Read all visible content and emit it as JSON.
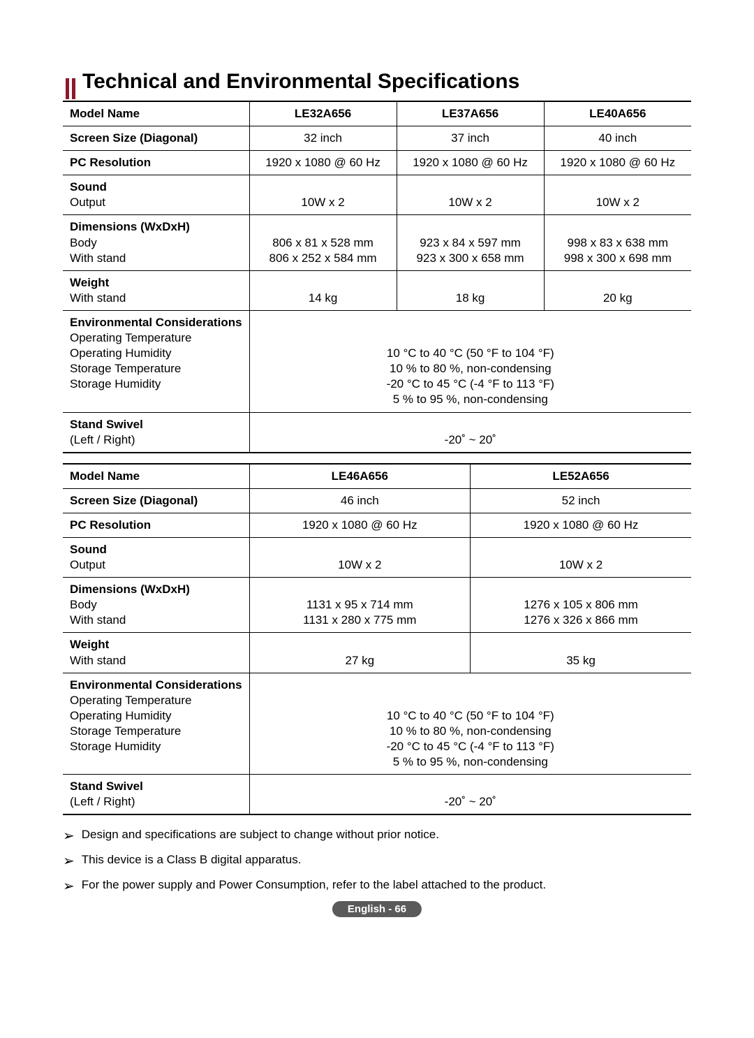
{
  "title": "Technical and Environmental Specifications",
  "accent_color": "#8a1a2b",
  "table1": {
    "header": {
      "label": "Model Name",
      "c1": "LE32A656",
      "c2": "LE37A656",
      "c3": "LE40A656"
    },
    "screen": {
      "label": "Screen Size (Diagonal)",
      "c1": "32 inch",
      "c2": "37 inch",
      "c3": "40 inch"
    },
    "pcres": {
      "label": "PC Resolution",
      "c1": "1920 x 1080 @ 60 Hz",
      "c2": "1920 x 1080 @ 60 Hz",
      "c3": "1920 x 1080 @ 60 Hz"
    },
    "sound": {
      "label": "Sound",
      "sub": "Output",
      "c1": "10W x 2",
      "c2": "10W x 2",
      "c3": "10W x 2"
    },
    "dim": {
      "label": "Dimensions (WxDxH)",
      "sub1": "Body",
      "sub2": "With stand",
      "c1a": "806 x 81 x 528 mm",
      "c1b": "806 x 252 x 584 mm",
      "c2a": "923 x 84 x 597 mm",
      "c2b": "923 x 300 x 658 mm",
      "c3a": "998 x 83 x 638 mm",
      "c3b": "998 x 300 x 698 mm"
    },
    "weight": {
      "label": "Weight",
      "sub": "With stand",
      "c1": "14 kg",
      "c2": "18 kg",
      "c3": "20 kg"
    },
    "env": {
      "label": "Environmental Considerations",
      "sub1": "Operating Temperature",
      "sub2": "Operating Humidity",
      "sub3": "Storage Temperature",
      "sub4": "Storage Humidity",
      "v1": "10 °C to 40 °C (50 °F to 104 °F)",
      "v2": "10 % to 80 %, non-condensing",
      "v3": "-20 °C to 45 °C (-4 °F to 113 °F)",
      "v4": "5 % to 95 %, non-condensing"
    },
    "swivel": {
      "label": "Stand Swivel",
      "sub": "(Left / Right)",
      "val": "-20˚ ~ 20˚"
    }
  },
  "table2": {
    "header": {
      "label": "Model Name",
      "c1": "LE46A656",
      "c2": "LE52A656"
    },
    "screen": {
      "label": "Screen Size (Diagonal)",
      "c1": "46 inch",
      "c2": "52 inch"
    },
    "pcres": {
      "label": "PC Resolution",
      "c1": "1920 x 1080 @ 60 Hz",
      "c2": "1920 x 1080 @ 60 Hz"
    },
    "sound": {
      "label": "Sound",
      "sub": "Output",
      "c1": "10W x 2",
      "c2": "10W x 2"
    },
    "dim": {
      "label": "Dimensions (WxDxH)",
      "sub1": "Body",
      "sub2": "With stand",
      "c1a": "1131 x 95 x 714 mm",
      "c1b": "1131 x 280 x 775 mm",
      "c2a": "1276 x 105 x 806 mm",
      "c2b": "1276 x 326 x 866 mm"
    },
    "weight": {
      "label": "Weight",
      "sub": "With stand",
      "c1": "27 kg",
      "c2": "35 kg"
    },
    "env": {
      "label": "Environmental Considerations",
      "sub1": "Operating Temperature",
      "sub2": "Operating Humidity",
      "sub3": "Storage Temperature",
      "sub4": "Storage Humidity",
      "v1": "10 °C to 40 °C (50 °F to 104 °F)",
      "v2": "10 % to 80 %, non-condensing",
      "v3": "-20 °C to 45 °C (-4 °F to 113 °F)",
      "v4": "5 % to 95 %, non-condensing"
    },
    "swivel": {
      "label": "Stand Swivel",
      "sub": "(Left / Right)",
      "val": "-20˚ ~ 20˚"
    }
  },
  "notes": {
    "n1": "Design and specifications are subject to change without prior notice.",
    "n2": "This device is a Class B digital apparatus.",
    "n3": "For the power supply and Power Consumption, refer to the label attached to the product."
  },
  "footer": "English - 66",
  "layout": {
    "t1_label_w": "24%",
    "t1_col_w": "25.3%",
    "t2_label_w": "24%",
    "t2_col_w": "38%"
  }
}
